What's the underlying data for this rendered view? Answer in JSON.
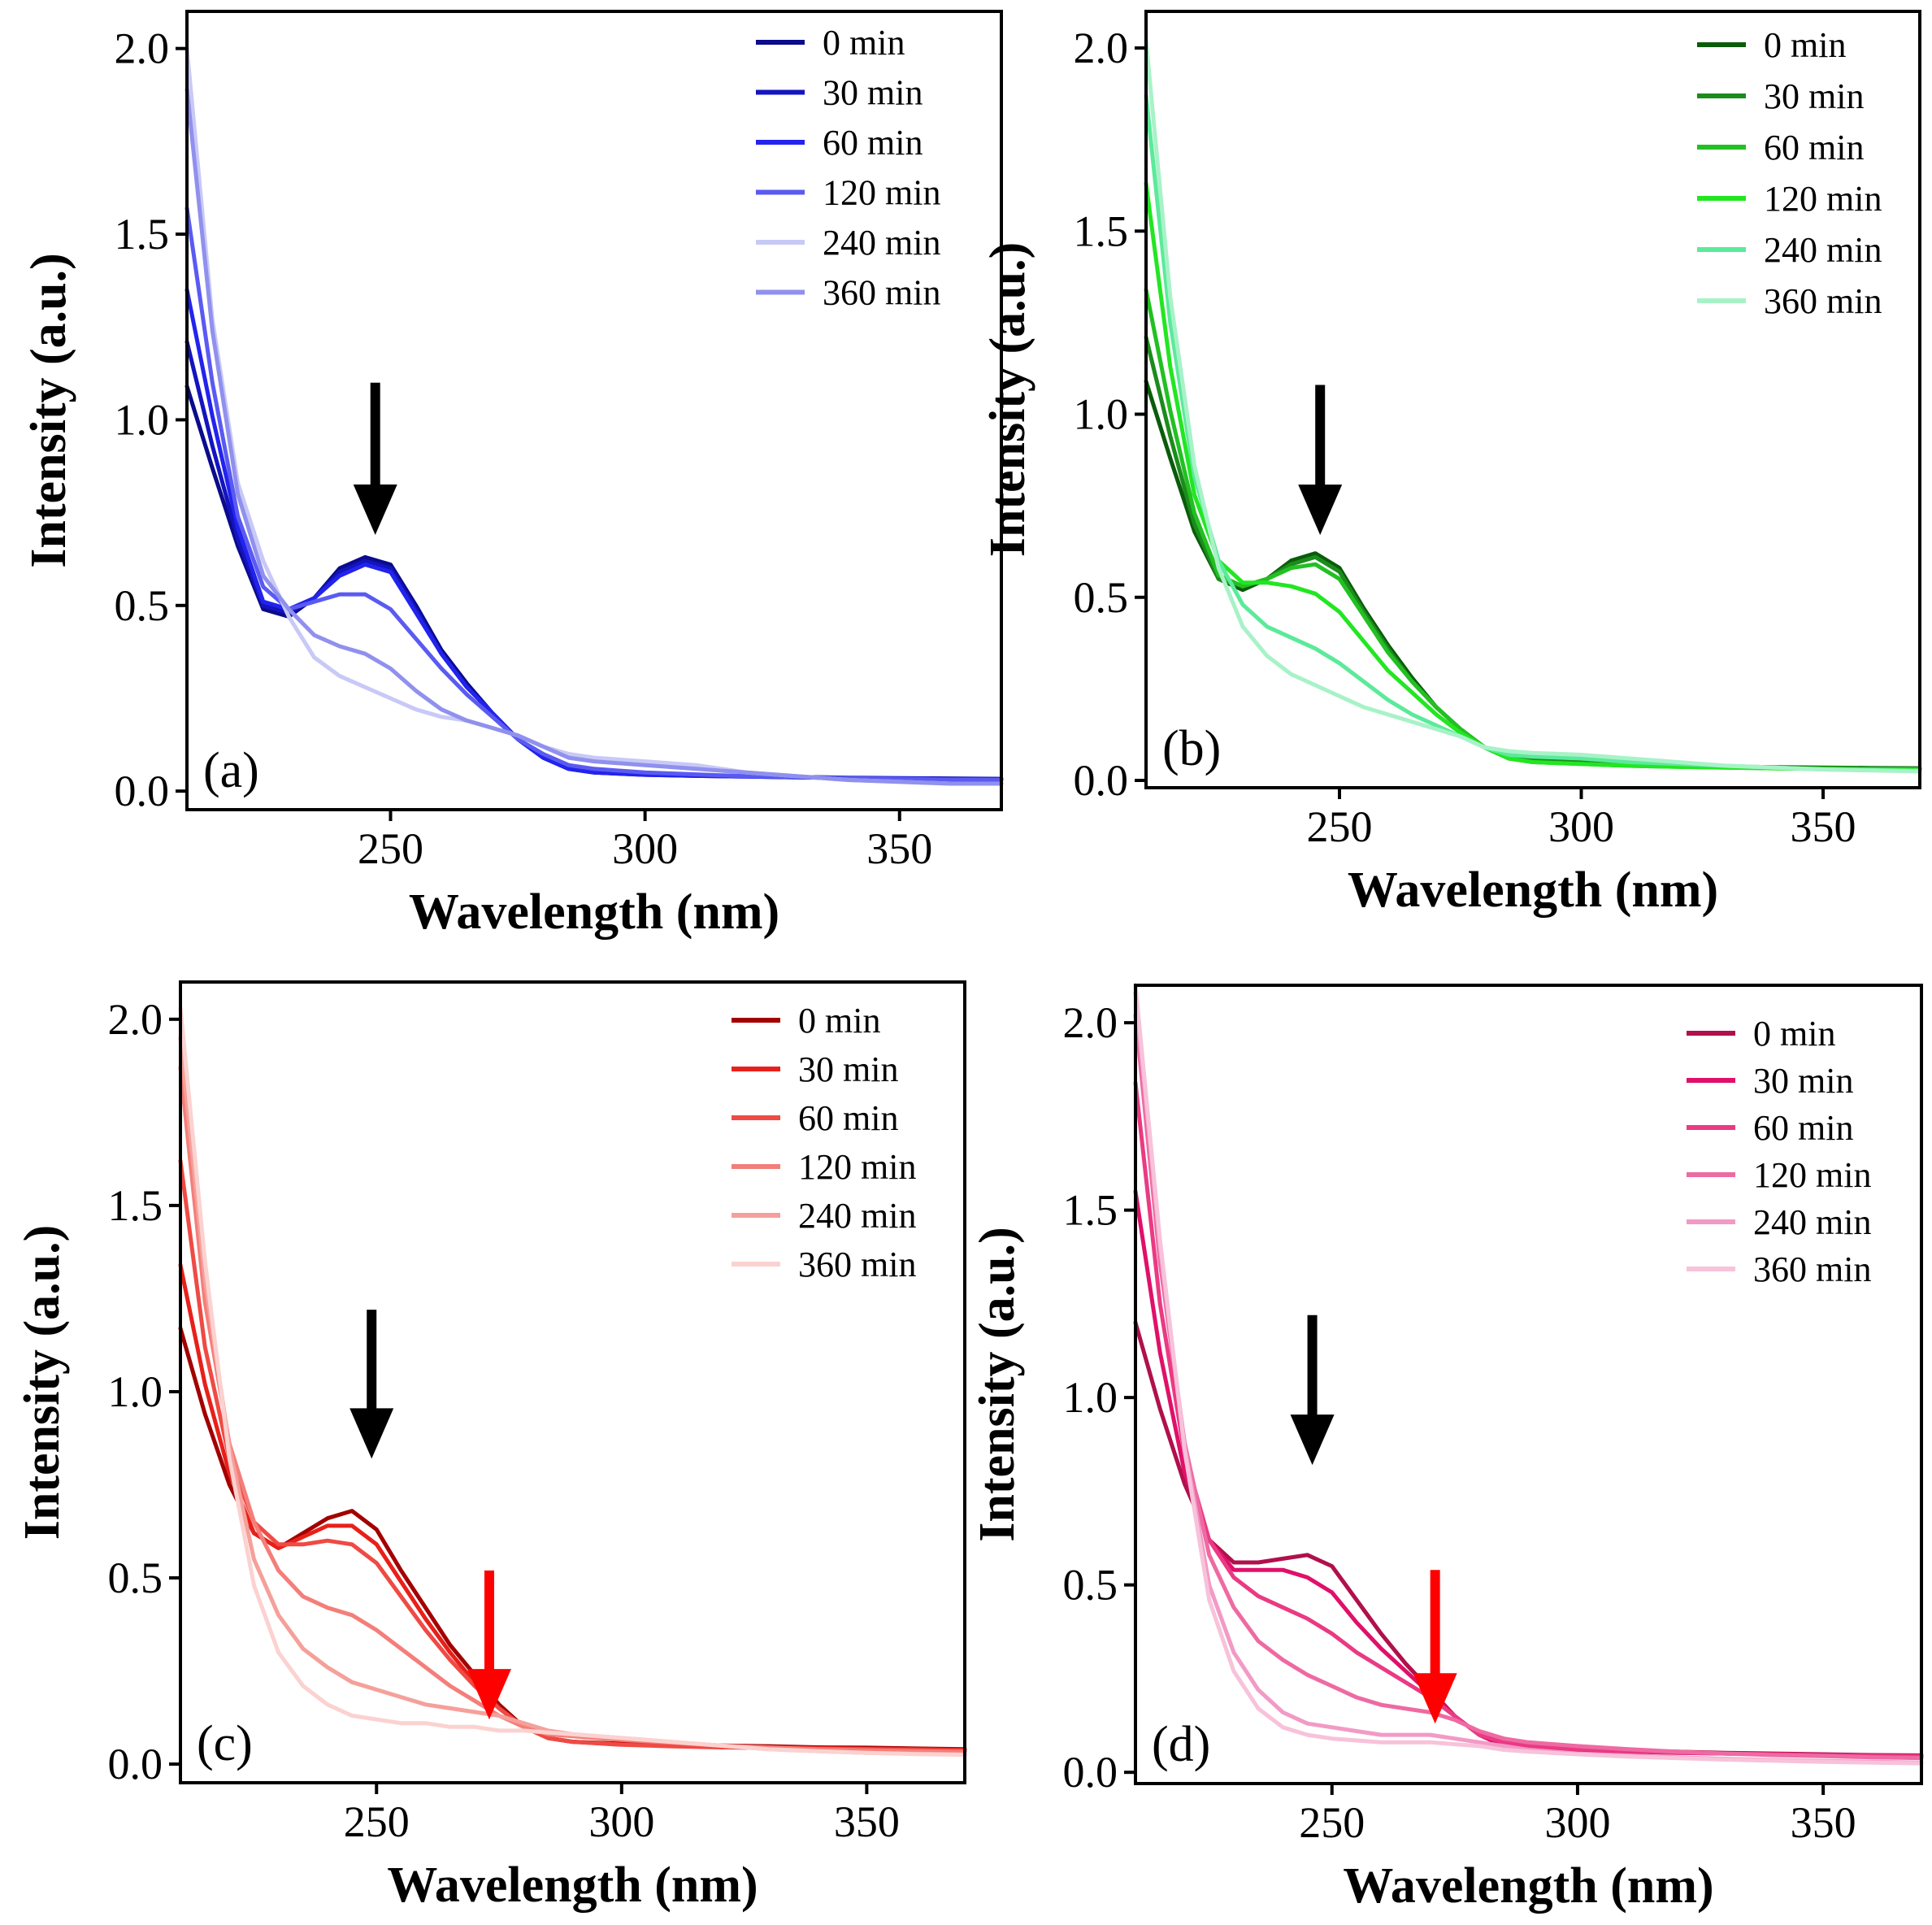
{
  "chart_data": [
    {
      "type": "line",
      "panel_label": "(a)",
      "xlabel": "Wavelength (nm)",
      "ylabel": "Intensity (a.u.)",
      "xlim": [
        210,
        370
      ],
      "ylim": [
        -0.05,
        2.1
      ],
      "xticks": [
        250,
        300,
        350
      ],
      "yticks": [
        0.0,
        0.5,
        1.0,
        1.5,
        2.0
      ],
      "x": [
        210,
        215,
        220,
        225,
        230,
        235,
        240,
        245,
        250,
        255,
        260,
        265,
        270,
        275,
        280,
        285,
        290,
        300,
        310,
        320,
        330,
        340,
        350,
        360,
        370
      ],
      "series": [
        {
          "name": "0 min",
          "color": "#0b0b8c",
          "values": [
            1.09,
            0.87,
            0.66,
            0.49,
            0.47,
            0.52,
            0.6,
            0.63,
            0.61,
            0.5,
            0.38,
            0.29,
            0.21,
            0.14,
            0.09,
            0.06,
            0.05,
            0.045,
            0.042,
            0.04,
            0.038,
            0.036,
            0.035,
            0.034,
            0.033
          ]
        },
        {
          "name": "30 min",
          "color": "#1414bf",
          "values": [
            1.21,
            0.93,
            0.68,
            0.5,
            0.48,
            0.52,
            0.59,
            0.62,
            0.6,
            0.49,
            0.37,
            0.28,
            0.21,
            0.14,
            0.09,
            0.06,
            0.05,
            0.044,
            0.041,
            0.039,
            0.037,
            0.035,
            0.034,
            0.033,
            0.032
          ]
        },
        {
          "name": "60 min",
          "color": "#2323ee",
          "values": [
            1.35,
            1.01,
            0.71,
            0.51,
            0.49,
            0.52,
            0.58,
            0.61,
            0.59,
            0.48,
            0.37,
            0.28,
            0.21,
            0.14,
            0.09,
            0.06,
            0.05,
            0.044,
            0.041,
            0.039,
            0.037,
            0.035,
            0.034,
            0.033,
            0.032
          ]
        },
        {
          "name": "120 min",
          "color": "#5a5af2",
          "values": [
            1.57,
            1.1,
            0.74,
            0.55,
            0.49,
            0.51,
            0.53,
            0.53,
            0.49,
            0.41,
            0.33,
            0.26,
            0.2,
            0.14,
            0.1,
            0.07,
            0.06,
            0.05,
            0.045,
            0.04,
            0.038,
            0.035,
            0.033,
            0.031,
            0.03
          ]
        },
        {
          "name": "240 min",
          "color": "#c9c9f7",
          "values": [
            2.0,
            1.27,
            0.83,
            0.62,
            0.47,
            0.36,
            0.31,
            0.28,
            0.25,
            0.22,
            0.2,
            0.19,
            0.17,
            0.15,
            0.12,
            0.1,
            0.09,
            0.08,
            0.07,
            0.05,
            0.04,
            0.03,
            0.025,
            0.02,
            0.02
          ]
        },
        {
          "name": "360 min",
          "color": "#9090ee",
          "values": [
            1.89,
            1.24,
            0.8,
            0.58,
            0.49,
            0.42,
            0.39,
            0.37,
            0.33,
            0.27,
            0.22,
            0.19,
            0.17,
            0.15,
            0.12,
            0.09,
            0.08,
            0.07,
            0.06,
            0.05,
            0.04,
            0.03,
            0.025,
            0.02,
            0.02
          ]
        }
      ],
      "annotations": [
        {
          "type": "arrow",
          "color": "#000000",
          "x": 247,
          "y_from": 1.1,
          "y_to": 0.69
        }
      ]
    },
    {
      "type": "line",
      "panel_label": "(b)",
      "xlabel": "Wavelength (nm)",
      "ylabel": "Intensity (a.u.)",
      "xlim": [
        210,
        370
      ],
      "ylim": [
        -0.02,
        2.1
      ],
      "xticks": [
        250,
        300,
        350
      ],
      "yticks": [
        0.0,
        0.5,
        1.0,
        1.5,
        2.0
      ],
      "x": [
        210,
        215,
        220,
        225,
        230,
        235,
        240,
        245,
        250,
        255,
        260,
        265,
        270,
        275,
        280,
        285,
        290,
        300,
        310,
        320,
        330,
        340,
        350,
        360,
        370
      ],
      "series": [
        {
          "name": "0 min",
          "color": "#0a5c0a",
          "values": [
            1.09,
            0.88,
            0.68,
            0.55,
            0.52,
            0.55,
            0.6,
            0.62,
            0.58,
            0.47,
            0.37,
            0.28,
            0.2,
            0.14,
            0.09,
            0.06,
            0.055,
            0.05,
            0.045,
            0.04,
            0.038,
            0.036,
            0.035,
            0.034,
            0.033
          ]
        },
        {
          "name": "30 min",
          "color": "#1b8c1b",
          "values": [
            1.21,
            0.94,
            0.7,
            0.55,
            0.53,
            0.55,
            0.59,
            0.61,
            0.57,
            0.46,
            0.36,
            0.27,
            0.2,
            0.14,
            0.09,
            0.06,
            0.055,
            0.05,
            0.044,
            0.04,
            0.037,
            0.035,
            0.034,
            0.033,
            0.032
          ]
        },
        {
          "name": "60 min",
          "color": "#22c022",
          "values": [
            1.34,
            1.01,
            0.73,
            0.56,
            0.53,
            0.55,
            0.58,
            0.59,
            0.55,
            0.45,
            0.35,
            0.27,
            0.2,
            0.14,
            0.09,
            0.06,
            0.05,
            0.045,
            0.04,
            0.037,
            0.035,
            0.033,
            0.032,
            0.031,
            0.03
          ]
        },
        {
          "name": "120 min",
          "color": "#22e622",
          "values": [
            1.63,
            1.13,
            0.78,
            0.6,
            0.54,
            0.54,
            0.53,
            0.51,
            0.46,
            0.38,
            0.3,
            0.24,
            0.18,
            0.13,
            0.09,
            0.06,
            0.05,
            0.045,
            0.04,
            0.037,
            0.035,
            0.033,
            0.031,
            0.03,
            0.029
          ]
        },
        {
          "name": "240 min",
          "color": "#5bea9a",
          "values": [
            1.87,
            1.25,
            0.83,
            0.6,
            0.48,
            0.42,
            0.39,
            0.36,
            0.32,
            0.27,
            0.22,
            0.18,
            0.15,
            0.12,
            0.09,
            0.07,
            0.065,
            0.06,
            0.05,
            0.045,
            0.04,
            0.035,
            0.03,
            0.028,
            0.026
          ]
        },
        {
          "name": "360 min",
          "color": "#a8f2c8",
          "values": [
            2.02,
            1.32,
            0.86,
            0.58,
            0.42,
            0.34,
            0.29,
            0.26,
            0.23,
            0.2,
            0.18,
            0.16,
            0.14,
            0.12,
            0.09,
            0.08,
            0.075,
            0.07,
            0.06,
            0.05,
            0.04,
            0.035,
            0.03,
            0.027,
            0.025
          ]
        }
      ],
      "annotations": [
        {
          "type": "arrow",
          "color": "#000000",
          "x": 246,
          "y_from": 1.08,
          "y_to": 0.67
        }
      ]
    },
    {
      "type": "line",
      "panel_label": "(c)",
      "xlabel": "Wavelength (nm)",
      "ylabel": "Intensity (a.u.)",
      "xlim": [
        210,
        370
      ],
      "ylim": [
        -0.05,
        2.1
      ],
      "xticks": [
        250,
        300,
        350
      ],
      "yticks": [
        0.0,
        0.5,
        1.0,
        1.5,
        2.0
      ],
      "x": [
        210,
        215,
        220,
        225,
        230,
        235,
        240,
        245,
        250,
        255,
        260,
        265,
        270,
        275,
        280,
        285,
        290,
        300,
        310,
        320,
        330,
        340,
        350,
        360,
        370
      ],
      "series": [
        {
          "name": "0 min",
          "color": "#a30000",
          "values": [
            1.17,
            0.94,
            0.75,
            0.62,
            0.58,
            0.62,
            0.66,
            0.68,
            0.63,
            0.52,
            0.42,
            0.32,
            0.24,
            0.16,
            0.1,
            0.07,
            0.06,
            0.055,
            0.052,
            0.05,
            0.048,
            0.045,
            0.044,
            0.042,
            0.04
          ]
        },
        {
          "name": "30 min",
          "color": "#e8201a",
          "values": [
            1.34,
            1.02,
            0.78,
            0.62,
            0.58,
            0.61,
            0.64,
            0.64,
            0.59,
            0.49,
            0.39,
            0.3,
            0.22,
            0.15,
            0.1,
            0.07,
            0.06,
            0.053,
            0.05,
            0.047,
            0.045,
            0.043,
            0.041,
            0.04,
            0.038
          ]
        },
        {
          "name": "60 min",
          "color": "#ef4a44",
          "values": [
            1.62,
            1.12,
            0.82,
            0.65,
            0.59,
            0.59,
            0.6,
            0.59,
            0.54,
            0.45,
            0.36,
            0.28,
            0.21,
            0.15,
            0.1,
            0.07,
            0.06,
            0.052,
            0.048,
            0.045,
            0.043,
            0.041,
            0.04,
            0.038,
            0.036
          ]
        },
        {
          "name": "120 min",
          "color": "#f47e7a",
          "values": [
            1.87,
            1.24,
            0.86,
            0.65,
            0.52,
            0.45,
            0.42,
            0.4,
            0.36,
            0.31,
            0.26,
            0.21,
            0.17,
            0.13,
            0.1,
            0.08,
            0.075,
            0.065,
            0.058,
            0.05,
            0.045,
            0.04,
            0.037,
            0.035,
            0.033
          ]
        },
        {
          "name": "240 min",
          "color": "#f5a09a",
          "values": [
            1.95,
            1.3,
            0.85,
            0.55,
            0.4,
            0.31,
            0.26,
            0.22,
            0.2,
            0.18,
            0.16,
            0.15,
            0.14,
            0.13,
            0.11,
            0.09,
            0.08,
            0.07,
            0.06,
            0.05,
            0.04,
            0.035,
            0.03,
            0.028,
            0.026
          ]
        },
        {
          "name": "360 min",
          "color": "#fbd2d0",
          "values": [
            2.03,
            1.35,
            0.82,
            0.48,
            0.3,
            0.21,
            0.16,
            0.13,
            0.12,
            0.11,
            0.11,
            0.1,
            0.1,
            0.09,
            0.09,
            0.085,
            0.08,
            0.07,
            0.06,
            0.05,
            0.04,
            0.035,
            0.03,
            0.027,
            0.025
          ]
        }
      ],
      "annotations": [
        {
          "type": "arrow",
          "color": "#000000",
          "x": 249,
          "y_from": 1.22,
          "y_to": 0.82
        },
        {
          "type": "arrow",
          "color": "#ff0000",
          "x": 273,
          "y_from": 0.52,
          "y_to": 0.12
        }
      ]
    },
    {
      "type": "line",
      "panel_label": "(d)",
      "xlabel": "Wavelength (nm)",
      "ylabel": "Intensity (a.u.)",
      "xlim": [
        210,
        370
      ],
      "ylim": [
        -0.03,
        2.1
      ],
      "xticks": [
        250,
        300,
        350
      ],
      "yticks": [
        0.0,
        0.5,
        1.0,
        1.5,
        2.0
      ],
      "x": [
        210,
        215,
        220,
        225,
        230,
        235,
        240,
        245,
        250,
        255,
        260,
        265,
        270,
        275,
        280,
        285,
        290,
        300,
        310,
        320,
        330,
        340,
        350,
        360,
        370
      ],
      "series": [
        {
          "name": "0 min",
          "color": "#b0104c",
          "values": [
            1.2,
            0.97,
            0.77,
            0.62,
            0.56,
            0.56,
            0.57,
            0.58,
            0.55,
            0.46,
            0.37,
            0.29,
            0.22,
            0.15,
            0.1,
            0.07,
            0.065,
            0.06,
            0.058,
            0.055,
            0.052,
            0.05,
            0.048,
            0.046,
            0.045
          ]
        },
        {
          "name": "30 min",
          "color": "#e0106a",
          "values": [
            1.55,
            1.12,
            0.8,
            0.62,
            0.54,
            0.54,
            0.54,
            0.52,
            0.48,
            0.4,
            0.33,
            0.27,
            0.21,
            0.15,
            0.1,
            0.07,
            0.063,
            0.058,
            0.055,
            0.052,
            0.05,
            0.048,
            0.046,
            0.044,
            0.043
          ]
        },
        {
          "name": "60 min",
          "color": "#ea3a84",
          "values": [
            1.84,
            1.25,
            0.85,
            0.62,
            0.52,
            0.47,
            0.44,
            0.41,
            0.37,
            0.32,
            0.28,
            0.24,
            0.2,
            0.15,
            0.1,
            0.08,
            0.07,
            0.062,
            0.057,
            0.053,
            0.05,
            0.048,
            0.046,
            0.044,
            0.043
          ]
        },
        {
          "name": "120 min",
          "color": "#ee6aa2",
          "values": [
            2.02,
            1.36,
            0.88,
            0.58,
            0.44,
            0.35,
            0.3,
            0.26,
            0.23,
            0.2,
            0.18,
            0.17,
            0.16,
            0.14,
            0.11,
            0.09,
            0.08,
            0.07,
            0.062,
            0.055,
            0.05,
            0.046,
            0.043,
            0.04,
            0.038
          ]
        },
        {
          "name": "240 min",
          "color": "#f29ac6",
          "values": [
            2.08,
            1.4,
            0.87,
            0.5,
            0.32,
            0.22,
            0.16,
            0.13,
            0.12,
            0.11,
            0.1,
            0.1,
            0.1,
            0.09,
            0.08,
            0.07,
            0.06,
            0.05,
            0.045,
            0.04,
            0.036,
            0.033,
            0.03,
            0.028,
            0.026
          ]
        },
        {
          "name": "360 min",
          "color": "#f7c2da",
          "values": [
            2.1,
            1.42,
            0.86,
            0.46,
            0.27,
            0.17,
            0.12,
            0.1,
            0.09,
            0.085,
            0.08,
            0.08,
            0.08,
            0.075,
            0.07,
            0.06,
            0.055,
            0.048,
            0.042,
            0.038,
            0.034,
            0.031,
            0.028,
            0.026,
            0.024
          ]
        }
      ],
      "annotations": [
        {
          "type": "arrow",
          "color": "#000000",
          "x": 246,
          "y_from": 1.22,
          "y_to": 0.82
        },
        {
          "type": "arrow",
          "color": "#ff0000",
          "x": 271,
          "y_from": 0.54,
          "y_to": 0.13
        }
      ]
    }
  ]
}
